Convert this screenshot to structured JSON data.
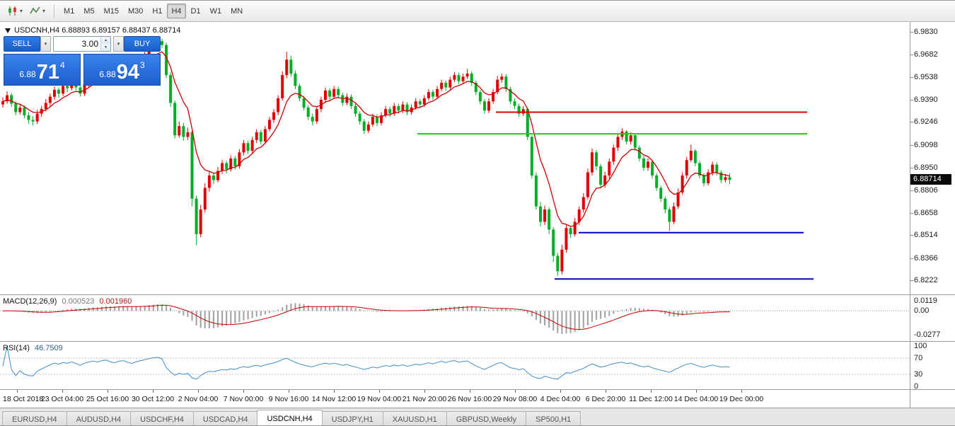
{
  "toolbar": {
    "timeframes": [
      "M1",
      "M5",
      "M15",
      "M30",
      "H1",
      "H4",
      "D1",
      "W1",
      "MN"
    ],
    "active_timeframe": "H4"
  },
  "chart_header": {
    "title": "USDCNH,H4 6.88893 6.89157 6.88437 6.88714"
  },
  "trade_panel": {
    "sell_label": "SELL",
    "buy_label": "BUY",
    "volume": "3.00",
    "bid": {
      "prefix": "6.88",
      "big": "71",
      "sup": "4"
    },
    "ask": {
      "prefix": "6.88",
      "big": "94",
      "sup": "3"
    }
  },
  "price_axis": {
    "labels": [
      "6.9830",
      "6.9682",
      "6.9538",
      "6.9390",
      "6.9246",
      "6.9098",
      "6.8950",
      "6.8806",
      "6.8658",
      "6.8514",
      "6.8366",
      "6.8222"
    ],
    "current_price": "6.88714"
  },
  "time_axis": {
    "labels": [
      "18 Oct 2018",
      "23 Oct 04:00",
      "25 Oct 16:00",
      "30 Oct 12:00",
      "2 Nov 04:00",
      "7 Nov 00:00",
      "9 Nov 16:00",
      "14 Nov 12:00",
      "19 Nov 04:00",
      "21 Nov 20:00",
      "26 Nov 16:00",
      "29 Nov 08:00",
      "4 Dec 04:00",
      "6 Dec 20:00",
      "11 Dec 12:00",
      "14 Dec 04:00",
      "19 Dec 00:00"
    ]
  },
  "indicators": {
    "macd": {
      "label": "MACD(12,26,9)",
      "value1": "0.000523",
      "value2": "0.001960",
      "fast": 12,
      "slow": 26,
      "signal": 9,
      "axis_labels": [
        "0.0119",
        "0.00",
        "-0.0277"
      ]
    },
    "rsi": {
      "label": "RSI(14)",
      "value": "46.7509",
      "period": 14,
      "levels": [
        70,
        30
      ],
      "axis_labels": [
        "100",
        "70",
        "30",
        "0"
      ]
    }
  },
  "tabs": {
    "items": [
      "EURUSD,H4",
      "AUDUSD,H4",
      "USDCHF,H4",
      "USDCAD,H4",
      "USDCNH,H4",
      "USDJPY,H1",
      "XAUUSD,H1",
      "GBPUSD,Weekly",
      "SP500,H1"
    ],
    "active": "USDCNH,H4"
  },
  "colors": {
    "up": "#e00000",
    "down": "#00ad26",
    "ma": "#cc0000",
    "macd_hist": "#a6a6a6",
    "macd_signal": "#c40000",
    "rsi_line": "#3f8fc9",
    "accent_blue": "#1f6ee0"
  },
  "chart_data": {
    "type": "candlestick",
    "symbol": "USDCNH",
    "timeframe": "H4",
    "ylim": [
      6.8222,
      6.983
    ],
    "ma_period": 8,
    "hlines": [
      {
        "price": 6.931,
        "color": "#e00000",
        "x1_frac": 0.545,
        "x2_frac": 0.887
      },
      {
        "price": 6.917,
        "color": "#00d800",
        "x1_frac": 0.459,
        "x2_frac": 0.887
      },
      {
        "price": 6.853,
        "color": "#0000c8",
        "x1_frac": 0.636,
        "x2_frac": 0.883
      },
      {
        "price": 6.823,
        "color": "#0000c8",
        "x1_frac": 0.61,
        "x2_frac": 0.894
      }
    ],
    "ohlc": [
      [
        6.936,
        6.9405,
        6.934,
        6.938
      ],
      [
        6.938,
        6.9445,
        6.9365,
        6.942
      ],
      [
        6.942,
        6.9435,
        6.9345,
        6.9365
      ],
      [
        6.9365,
        6.938,
        6.929,
        6.931
      ],
      [
        6.931,
        6.9365,
        6.9295,
        6.934
      ],
      [
        6.934,
        6.9355,
        6.927,
        6.929
      ],
      [
        6.929,
        6.931,
        6.9235,
        6.926
      ],
      [
        6.926,
        6.9285,
        6.9225,
        6.925
      ],
      [
        6.925,
        6.9325,
        6.9235,
        6.93
      ],
      [
        6.93,
        6.935,
        6.928,
        6.933
      ],
      [
        6.933,
        6.9395,
        6.9315,
        6.937
      ],
      [
        6.937,
        6.943,
        6.935,
        6.941
      ],
      [
        6.941,
        6.9475,
        6.939,
        6.9455
      ],
      [
        6.9455,
        6.947,
        6.9405,
        6.943
      ],
      [
        6.943,
        6.95,
        6.9415,
        6.948
      ],
      [
        6.948,
        6.95,
        6.944,
        6.9465
      ],
      [
        6.9465,
        6.9525,
        6.945,
        6.9505
      ],
      [
        6.9505,
        6.952,
        6.945,
        6.947
      ],
      [
        6.947,
        6.9485,
        6.941,
        6.943
      ],
      [
        6.943,
        6.951,
        6.9415,
        6.949
      ],
      [
        6.949,
        6.955,
        6.947,
        6.953
      ],
      [
        6.953,
        6.958,
        6.951,
        6.956
      ],
      [
        6.956,
        6.9575,
        6.9515,
        6.954
      ],
      [
        6.954,
        6.9605,
        6.9525,
        6.9585
      ],
      [
        6.9585,
        6.963,
        6.9565,
        6.961
      ],
      [
        6.961,
        6.9625,
        6.955,
        6.957
      ],
      [
        6.957,
        6.959,
        6.9535,
        6.9555
      ],
      [
        6.9555,
        6.962,
        6.954,
        6.96
      ],
      [
        6.96,
        6.964,
        6.958,
        6.962
      ],
      [
        6.962,
        6.9635,
        6.957,
        6.959
      ],
      [
        6.959,
        6.9605,
        6.9545,
        6.9565
      ],
      [
        6.9565,
        6.963,
        6.955,
        6.961
      ],
      [
        6.961,
        6.967,
        6.9595,
        6.965
      ],
      [
        6.965,
        6.97,
        6.9635,
        6.968
      ],
      [
        6.968,
        6.974,
        6.9665,
        6.972
      ],
      [
        6.972,
        6.9775,
        6.9705,
        6.9755
      ],
      [
        6.9755,
        6.98,
        6.974,
        6.977
      ],
      [
        6.977,
        6.9785,
        6.9725,
        6.9745
      ],
      [
        6.9745,
        6.976,
        6.953,
        6.955
      ],
      [
        6.955,
        6.957,
        6.9345,
        6.937
      ],
      [
        6.937,
        6.9385,
        6.914,
        6.916
      ],
      [
        6.916,
        6.925,
        6.9145,
        6.922
      ],
      [
        6.922,
        6.924,
        6.9125,
        6.915
      ],
      [
        6.915,
        6.921,
        6.913,
        6.918
      ],
      [
        6.918,
        6.919,
        6.87,
        6.875
      ],
      [
        6.875,
        6.877,
        6.845,
        6.852
      ],
      [
        6.852,
        6.871,
        6.85,
        6.868
      ],
      [
        6.868,
        6.885,
        6.866,
        6.882
      ],
      [
        6.882,
        6.8925,
        6.8795,
        6.89
      ],
      [
        6.89,
        6.892,
        6.8845,
        6.887
      ],
      [
        6.887,
        6.8955,
        6.8855,
        6.893
      ],
      [
        6.893,
        6.9,
        6.891,
        6.898
      ],
      [
        6.898,
        6.8995,
        6.8915,
        6.894
      ],
      [
        6.894,
        6.903,
        6.8925,
        6.901
      ],
      [
        6.901,
        6.9025,
        6.894,
        6.896
      ],
      [
        6.896,
        6.907,
        6.8945,
        6.905
      ],
      [
        6.905,
        6.913,
        6.903,
        6.911
      ],
      [
        6.911,
        6.9125,
        6.904,
        6.906
      ],
      [
        6.906,
        6.915,
        6.9045,
        6.913
      ],
      [
        6.913,
        6.92,
        6.911,
        6.918
      ],
      [
        6.918,
        6.9195,
        6.91,
        6.912
      ],
      [
        6.912,
        6.922,
        6.9105,
        6.92
      ],
      [
        6.92,
        6.928,
        6.9185,
        6.926
      ],
      [
        6.926,
        6.933,
        6.924,
        6.931
      ],
      [
        6.931,
        6.942,
        6.929,
        6.94
      ],
      [
        6.94,
        6.9575,
        6.9385,
        6.955
      ],
      [
        6.955,
        6.97,
        6.953,
        6.965
      ],
      [
        6.965,
        6.9675,
        6.954,
        6.956
      ],
      [
        6.956,
        6.958,
        6.946,
        6.948
      ],
      [
        6.948,
        6.9495,
        6.938,
        6.94
      ],
      [
        6.94,
        6.9415,
        6.932,
        6.934
      ],
      [
        6.934,
        6.9355,
        6.926,
        6.928
      ],
      [
        6.928,
        6.93,
        6.9225,
        6.925
      ],
      [
        6.925,
        6.935,
        6.9235,
        6.933
      ],
      [
        6.933,
        6.941,
        6.931,
        6.939
      ],
      [
        6.939,
        6.947,
        6.937,
        6.945
      ],
      [
        6.945,
        6.9465,
        6.9385,
        6.941
      ],
      [
        6.941,
        6.948,
        6.9395,
        6.946
      ],
      [
        6.946,
        6.9475,
        6.94,
        6.942
      ],
      [
        6.942,
        6.9435,
        6.935,
        6.937
      ],
      [
        6.937,
        6.943,
        6.9355,
        6.941
      ],
      [
        6.941,
        6.9425,
        6.933,
        6.935
      ],
      [
        6.935,
        6.9365,
        6.928,
        6.93
      ],
      [
        6.93,
        6.9315,
        6.923,
        6.925
      ],
      [
        6.925,
        6.9265,
        6.917,
        6.919
      ],
      [
        6.919,
        6.925,
        6.9175,
        6.923
      ],
      [
        6.923,
        6.93,
        6.9215,
        6.928
      ],
      [
        6.928,
        6.9295,
        6.922,
        6.924
      ],
      [
        6.924,
        6.931,
        6.9225,
        6.929
      ],
      [
        6.929,
        6.935,
        6.9275,
        6.933
      ],
      [
        6.933,
        6.9345,
        6.928,
        6.93
      ],
      [
        6.93,
        6.937,
        6.9285,
        6.935
      ],
      [
        6.935,
        6.9365,
        6.93,
        6.932
      ],
      [
        6.932,
        6.938,
        6.9305,
        6.936
      ],
      [
        6.936,
        6.9375,
        6.929,
        6.931
      ],
      [
        6.931,
        6.936,
        6.9295,
        6.934
      ],
      [
        6.934,
        6.94,
        6.9325,
        6.938
      ],
      [
        6.938,
        6.9395,
        6.934,
        6.936
      ],
      [
        6.936,
        6.942,
        6.9345,
        6.94
      ],
      [
        6.94,
        6.946,
        6.9385,
        6.944
      ],
      [
        6.944,
        6.9455,
        6.939,
        6.941
      ],
      [
        6.941,
        6.948,
        6.9395,
        6.946
      ],
      [
        6.946,
        6.952,
        6.9445,
        6.95
      ],
      [
        6.95,
        6.9515,
        6.945,
        6.947
      ],
      [
        6.947,
        6.954,
        6.9455,
        6.952
      ],
      [
        6.952,
        6.957,
        6.9505,
        6.955
      ],
      [
        6.955,
        6.9565,
        6.949,
        6.951
      ],
      [
        6.951,
        6.956,
        6.9495,
        6.954
      ],
      [
        6.954,
        6.959,
        6.9525,
        6.956
      ],
      [
        6.956,
        6.9575,
        6.948,
        6.95
      ],
      [
        6.95,
        6.9515,
        6.942,
        6.944
      ],
      [
        6.944,
        6.9455,
        6.936,
        6.938
      ],
      [
        6.938,
        6.9395,
        6.93,
        6.932
      ],
      [
        6.932,
        6.94,
        6.9305,
        6.938
      ],
      [
        6.938,
        6.946,
        6.9365,
        6.944
      ],
      [
        6.944,
        6.9545,
        6.9425,
        6.952
      ],
      [
        6.952,
        6.956,
        6.95,
        6.954
      ],
      [
        6.954,
        6.9555,
        6.944,
        6.946
      ],
      [
        6.946,
        6.9475,
        6.936,
        6.938
      ],
      [
        6.938,
        6.94,
        6.933,
        6.935
      ],
      [
        6.935,
        6.9365,
        6.928,
        6.93
      ],
      [
        6.93,
        6.935,
        6.9285,
        6.933
      ],
      [
        6.933,
        6.934,
        6.913,
        6.915
      ],
      [
        6.915,
        6.916,
        6.888,
        6.89
      ],
      [
        6.89,
        6.892,
        6.868,
        6.87
      ],
      [
        6.87,
        6.873,
        6.857,
        6.86
      ],
      [
        6.86,
        6.8705,
        6.858,
        6.868
      ],
      [
        6.868,
        6.8695,
        6.852,
        6.855
      ],
      [
        6.855,
        6.8565,
        6.834,
        6.838
      ],
      [
        6.838,
        6.84,
        6.825,
        6.828
      ],
      [
        6.828,
        6.845,
        6.826,
        6.842
      ],
      [
        6.842,
        6.8585,
        6.84,
        6.856
      ],
      [
        6.856,
        6.8575,
        6.8495,
        6.852
      ],
      [
        6.852,
        6.8625,
        6.8505,
        6.86
      ],
      [
        6.86,
        6.87,
        6.858,
        6.868
      ],
      [
        6.868,
        6.8785,
        6.866,
        6.876
      ],
      [
        6.876,
        6.8945,
        6.8745,
        6.892
      ],
      [
        6.892,
        6.9075,
        6.89,
        6.905
      ],
      [
        6.905,
        6.9065,
        6.8935,
        6.896
      ],
      [
        6.896,
        6.8975,
        6.8815,
        6.884
      ],
      [
        6.884,
        6.8925,
        6.882,
        6.89
      ],
      [
        6.89,
        6.901,
        6.888,
        6.899
      ],
      [
        6.899,
        6.91,
        6.897,
        6.908
      ],
      [
        6.908,
        6.917,
        6.906,
        6.915
      ],
      [
        6.915,
        6.9205,
        6.913,
        6.9185
      ],
      [
        6.9185,
        6.9195,
        6.91,
        6.912
      ],
      [
        6.912,
        6.918,
        6.91,
        6.916
      ],
      [
        6.916,
        6.917,
        6.906,
        6.908
      ],
      [
        6.908,
        6.9095,
        6.899,
        6.901
      ],
      [
        6.901,
        6.9025,
        6.893,
        6.895
      ],
      [
        6.895,
        6.901,
        6.893,
        6.899
      ],
      [
        6.899,
        6.9,
        6.888,
        6.89
      ],
      [
        6.89,
        6.8915,
        6.88,
        6.882
      ],
      [
        6.882,
        6.8835,
        6.873,
        6.875
      ],
      [
        6.875,
        6.8765,
        6.8655,
        6.868
      ],
      [
        6.868,
        6.8695,
        6.854,
        6.86
      ],
      [
        6.86,
        6.8725,
        6.8585,
        6.87
      ],
      [
        6.87,
        6.8815,
        6.8685,
        6.879
      ],
      [
        6.879,
        6.892,
        6.8775,
        6.89
      ],
      [
        6.89,
        6.902,
        6.888,
        6.9
      ],
      [
        6.9,
        6.91,
        6.8985,
        6.906
      ],
      [
        6.906,
        6.907,
        6.896,
        6.898
      ],
      [
        6.898,
        6.8995,
        6.888,
        6.89
      ],
      [
        6.89,
        6.8915,
        6.883,
        6.885
      ],
      [
        6.885,
        6.894,
        6.8835,
        6.892
      ],
      [
        6.892,
        6.899,
        6.89,
        6.897
      ],
      [
        6.897,
        6.8985,
        6.89,
        6.892
      ],
      [
        6.892,
        6.8935,
        6.885,
        6.887
      ],
      [
        6.887,
        6.891,
        6.8855,
        6.8889
      ],
      [
        6.88893,
        6.89157,
        6.88437,
        6.88714
      ]
    ]
  }
}
